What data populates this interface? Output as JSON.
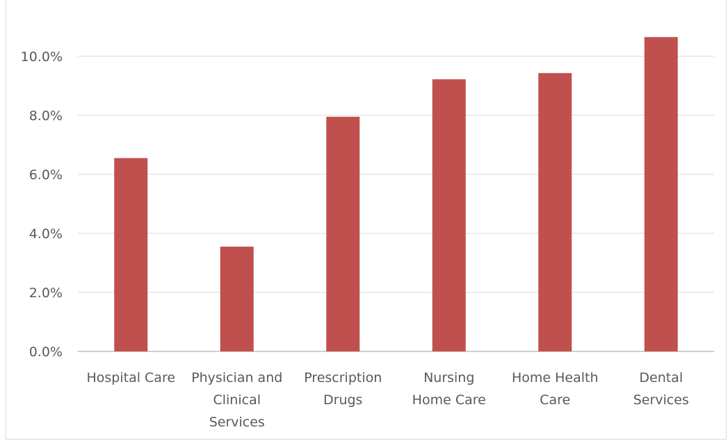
{
  "chart_data": {
    "type": "bar",
    "title": "",
    "xlabel": "",
    "ylabel": "",
    "categories": [
      [
        "Hospital Care"
      ],
      [
        "Physician and",
        "Clinical",
        "Services"
      ],
      [
        "Prescription",
        "Drugs"
      ],
      [
        "Nursing",
        "Home Care"
      ],
      [
        "Home Health",
        "Care"
      ],
      [
        "Dental",
        "Services"
      ]
    ],
    "values": [
      6.55,
      3.55,
      7.95,
      9.22,
      9.43,
      10.65
    ],
    "ylim": [
      0,
      12
    ],
    "yticks": [
      0,
      2,
      4,
      6,
      8,
      10
    ],
    "ytick_labels": [
      "0.0%",
      "2.0%",
      "4.0%",
      "6.0%",
      "8.0%",
      "10.0%"
    ],
    "grid": true,
    "colors": {
      "bar": "#c0504d",
      "grid": "#d9d9d9",
      "axis": "#bfbfbf",
      "text": "#595959"
    }
  }
}
